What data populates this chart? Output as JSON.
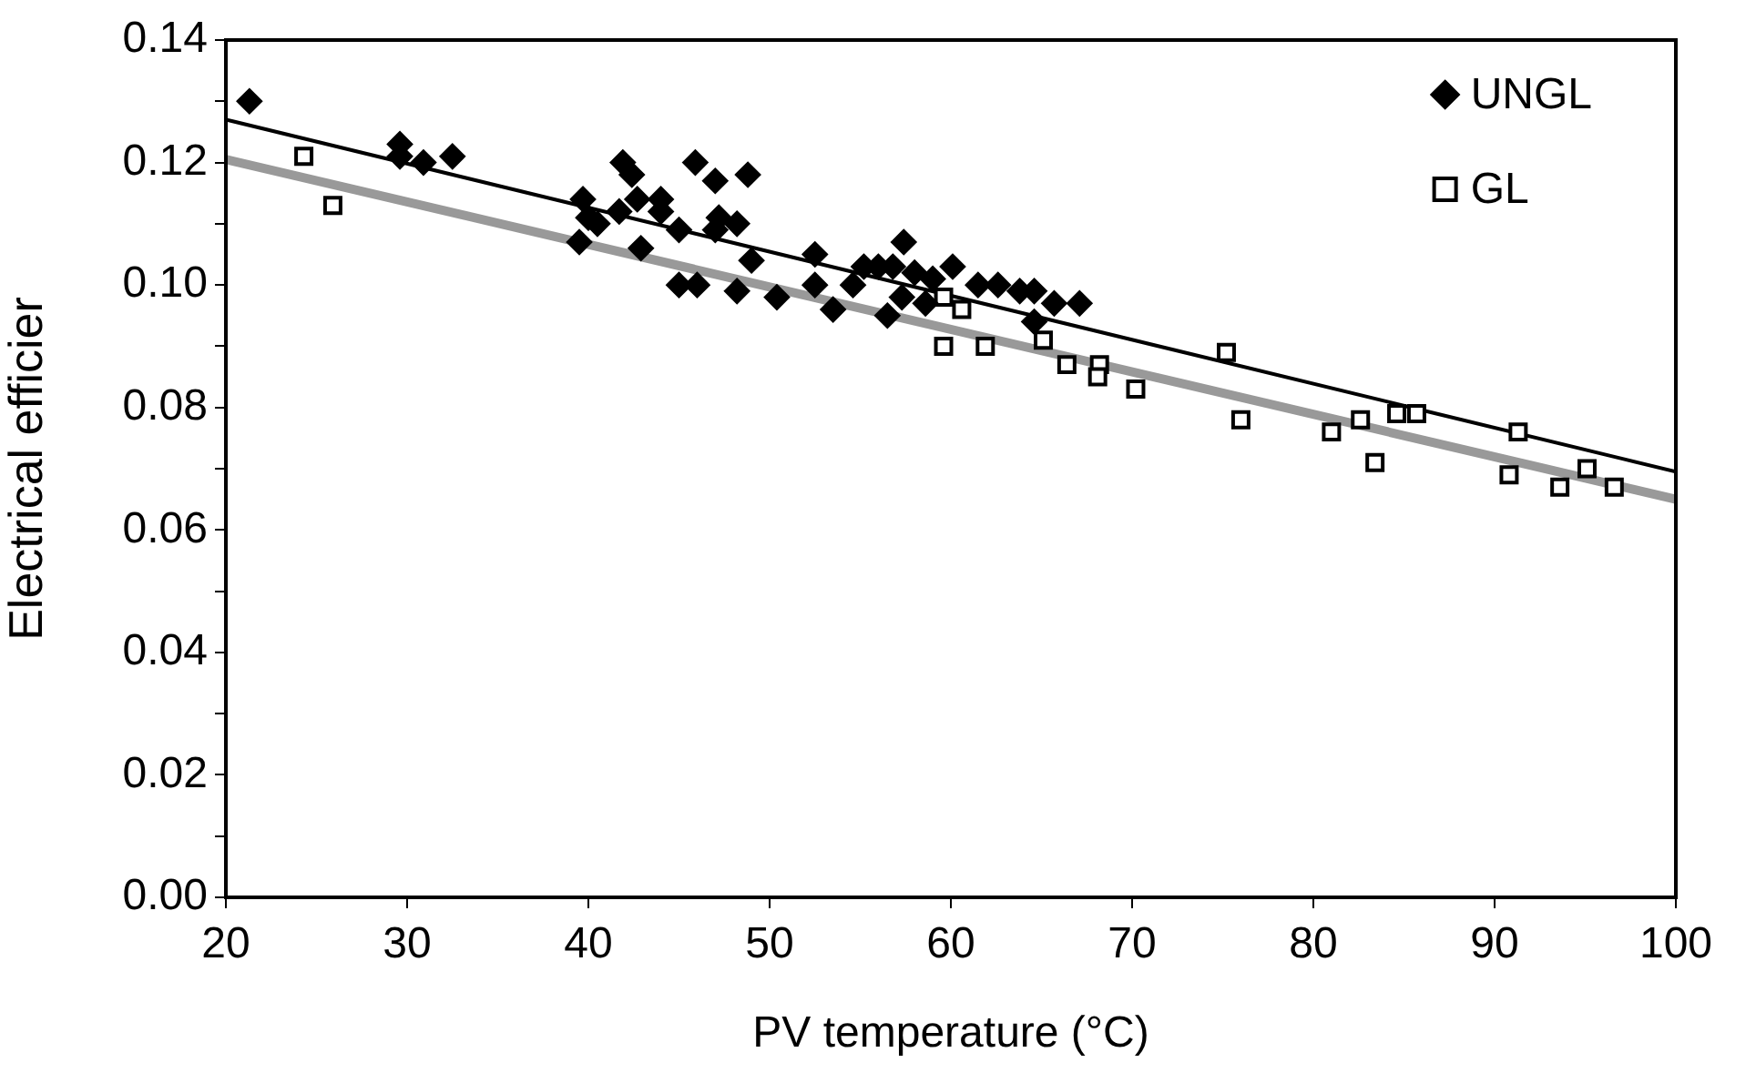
{
  "chart_data": {
    "type": "scatter",
    "xlabel": "PV temperature (°C)",
    "ylabel": "Electrical efficier",
    "xlim": [
      20,
      100
    ],
    "xticks": [
      20,
      30,
      40,
      50,
      60,
      70,
      80,
      90,
      100
    ],
    "ylim": [
      0,
      0.14
    ],
    "yticks": [
      {
        "value": 0,
        "label": "0.00"
      },
      {
        "value": 0.01,
        "label": null
      },
      {
        "value": 0.02,
        "label": "0.02"
      },
      {
        "value": 0.03,
        "label": null
      },
      {
        "value": 0.04,
        "label": "0.04"
      },
      {
        "value": 0.05,
        "label": null
      },
      {
        "value": 0.06,
        "label": "0.06"
      },
      {
        "value": 0.07,
        "label": null
      },
      {
        "value": 0.08,
        "label": "0.08"
      },
      {
        "value": 0.09,
        "label": null
      },
      {
        "value": 0.1,
        "label": "0.10"
      },
      {
        "value": 0.11,
        "label": null
      },
      {
        "value": 0.12,
        "label": "0.12"
      },
      {
        "value": 0.13,
        "label": null
      },
      {
        "value": 0.14,
        "label": "0.14"
      }
    ],
    "grid": false,
    "legend": "top right",
    "series": [
      {
        "name": "UNGL",
        "marker": "diamond",
        "color": "#000000",
        "x": [
          21.3,
          29.6,
          29.6,
          30.9,
          32.5,
          39.7,
          40.0,
          39.5,
          40.5,
          41.9,
          42.4,
          41.7,
          42.7,
          42.9,
          44.0,
          44.0,
          45.0,
          45.0,
          45.9,
          46.0,
          47.0,
          47.0,
          47.2,
          48.8,
          48.2,
          48.2,
          49.0,
          50.4,
          52.5,
          52.5,
          53.5,
          54.6,
          55.2,
          56.0,
          56.5,
          56.8,
          57.4,
          57.3,
          58.0,
          58.6,
          59.0,
          60.1,
          61.5,
          62.6,
          63.8,
          64.6,
          64.6,
          65.7,
          67.1
        ],
        "values": [
          0.13,
          0.123,
          0.121,
          0.12,
          0.121,
          0.114,
          0.111,
          0.107,
          0.11,
          0.12,
          0.118,
          0.112,
          0.114,
          0.106,
          0.114,
          0.112,
          0.109,
          0.1,
          0.12,
          0.1,
          0.117,
          0.109,
          0.111,
          0.118,
          0.11,
          0.099,
          0.104,
          0.098,
          0.105,
          0.1,
          0.096,
          0.1,
          0.103,
          0.103,
          0.095,
          0.103,
          0.107,
          0.098,
          0.102,
          0.097,
          0.101,
          0.103,
          0.1,
          0.1,
          0.099,
          0.099,
          0.094,
          0.097,
          0.097
        ]
      },
      {
        "name": "GL",
        "marker": "square",
        "color": "#000000",
        "x": [
          24.3,
          25.9,
          59.6,
          60.6,
          59.6,
          61.9,
          65.1,
          66.4,
          68.2,
          68.1,
          70.2,
          75.2,
          76.0,
          81.0,
          82.6,
          83.4,
          84.6,
          85.7,
          91.3,
          90.8,
          93.6,
          95.1,
          96.6
        ],
        "values": [
          0.121,
          0.113,
          0.098,
          0.096,
          0.09,
          0.09,
          0.091,
          0.087,
          0.087,
          0.085,
          0.083,
          0.089,
          0.078,
          0.076,
          0.078,
          0.071,
          0.079,
          0.079,
          0.076,
          0.069,
          0.067,
          0.07,
          0.067
        ]
      },
      {
        "type": "line",
        "marker": "none",
        "color": "#000000",
        "x": [
          20,
          100
        ],
        "values": [
          0.127,
          0.0695
        ]
      },
      {
        "type": "line",
        "marker": "none",
        "color": "#999999",
        "x": [
          20,
          100
        ],
        "values": [
          0.1205,
          0.065
        ]
      }
    ]
  }
}
